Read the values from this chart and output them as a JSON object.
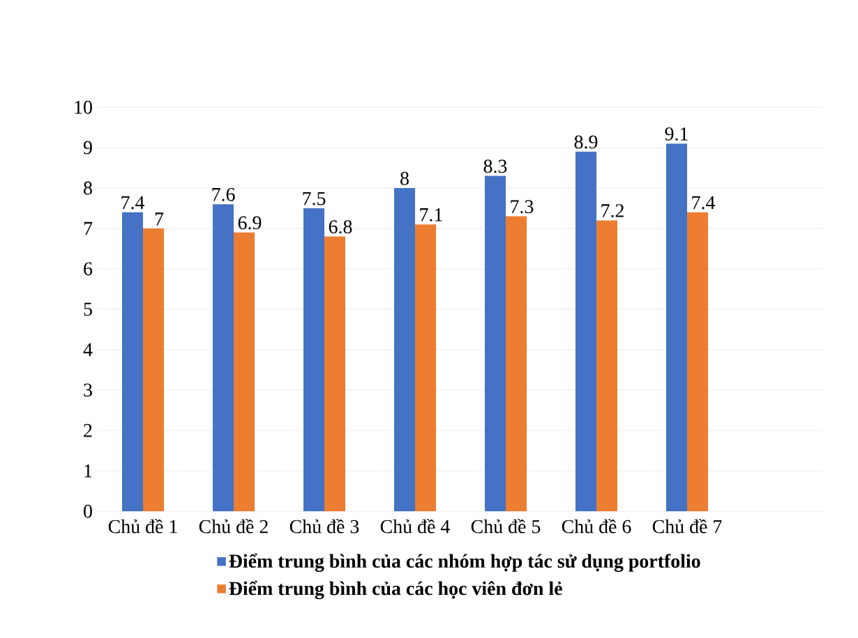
{
  "chart_data": {
    "type": "bar",
    "categories": [
      "Chủ đề 1",
      "Chủ đề 2",
      "Chủ đề 3",
      "Chủ đề 4",
      "Chủ đề 5",
      "Chủ đề 6",
      "Chủ đề 7",
      null
    ],
    "series": [
      {
        "name": "Điểm trung bình của các nhóm hợp tác sử dụng portfolio",
        "color": "#4472c4",
        "values": [
          7.4,
          7.6,
          7.5,
          8,
          8.3,
          8.9,
          9.1,
          null
        ]
      },
      {
        "name": "Điểm trung bình của các học viên đơn lẻ",
        "color": "#ed7d31",
        "values": [
          7,
          6.9,
          6.8,
          7.1,
          7.3,
          7.2,
          7.4,
          null
        ]
      }
    ],
    "ylim": [
      0,
      10
    ],
    "yticks": [
      0,
      1,
      2,
      3,
      4,
      5,
      6,
      7,
      8,
      9,
      10
    ],
    "grid": "y",
    "data_labels": true,
    "legend": "bottom"
  }
}
